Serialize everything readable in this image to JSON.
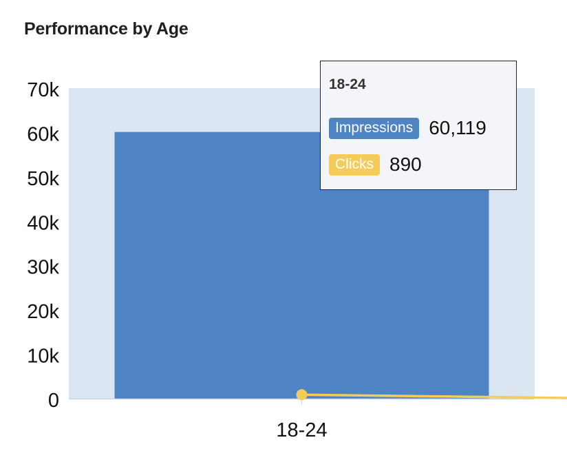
{
  "title": "Performance by Age",
  "colors": {
    "impressions": "#4e83c4",
    "clicks": "#f5cc59",
    "hover_band": "#dbe6f2",
    "axis": "#c9d6e6"
  },
  "tooltip": {
    "category": "18-24",
    "rows": [
      {
        "label": "Impressions",
        "value": "60,119"
      },
      {
        "label": "Clicks",
        "value": "890"
      }
    ]
  },
  "chart_data": {
    "type": "bar",
    "title": "Performance by Age",
    "categories": [
      "18-24"
    ],
    "series": [
      {
        "name": "Impressions",
        "type": "bar",
        "values": [
          60119
        ]
      },
      {
        "name": "Clicks",
        "type": "line",
        "values": [
          890
        ]
      }
    ],
    "y_ticks": [
      "0",
      "10k",
      "20k",
      "30k",
      "40k",
      "50k",
      "60k",
      "70k"
    ],
    "ylim": [
      0,
      70000
    ],
    "grid": false
  }
}
